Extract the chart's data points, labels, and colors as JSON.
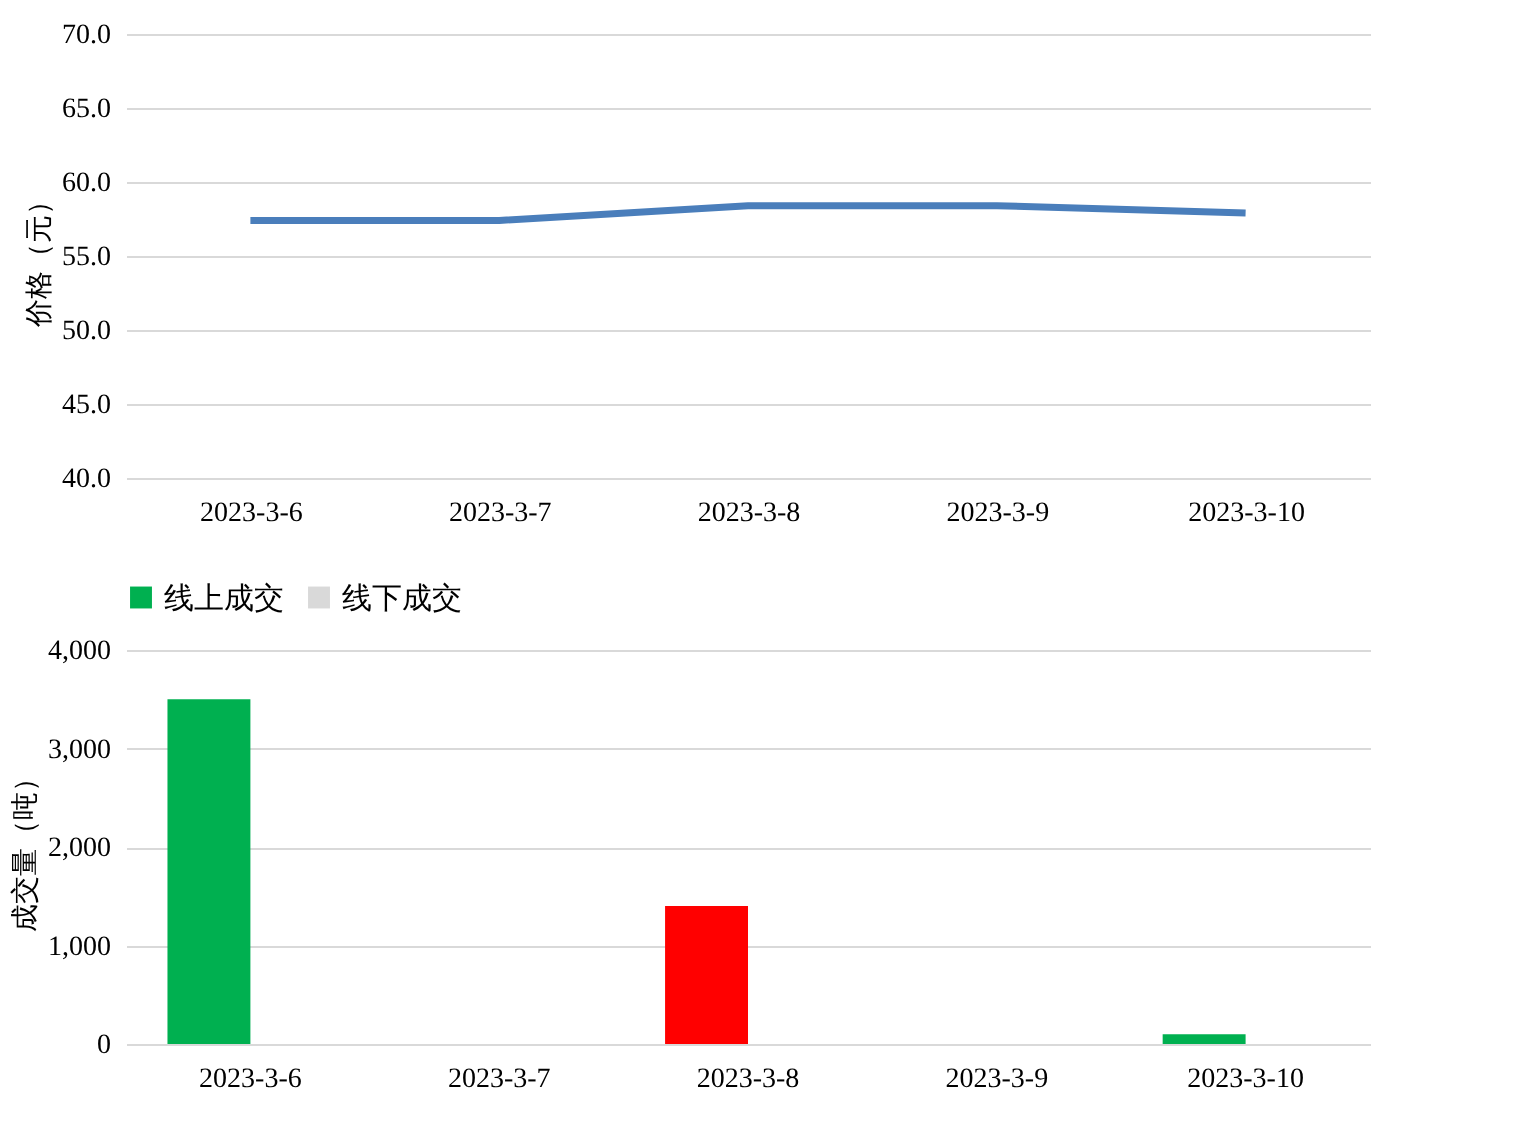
{
  "chart_data": [
    {
      "type": "line",
      "ylabel": "价格（元）",
      "categories": [
        "2023-3-6",
        "2023-3-7",
        "2023-3-8",
        "2023-3-9",
        "2023-3-10"
      ],
      "series": [
        {
          "color": "#4a7ebb",
          "values": [
            57.4,
            57.4,
            58.4,
            58.4,
            57.9
          ]
        }
      ],
      "ylim": [
        40,
        70
      ],
      "yticks": [
        {
          "value": 40,
          "label": "40.0"
        },
        {
          "value": 45,
          "label": "45.0"
        },
        {
          "value": 50,
          "label": "50.0"
        },
        {
          "value": 55,
          "label": "55.0"
        },
        {
          "value": 60,
          "label": "60.0"
        },
        {
          "value": 65,
          "label": "65.0"
        },
        {
          "value": 70,
          "label": "70.0"
        }
      ],
      "grid": "y",
      "legend": false,
      "marker": "none",
      "line_style": "solid"
    },
    {
      "type": "bar",
      "ylabel": "成交量（吨）",
      "categories": [
        "2023-3-6",
        "2023-3-7",
        "2023-3-8",
        "2023-3-9",
        "2023-3-10"
      ],
      "series": [
        {
          "name": "线上成交",
          "color": "#00b050",
          "colors": [
            "#00b050",
            null,
            "#ff0000",
            null,
            "#00b050"
          ],
          "values": [
            3500,
            0,
            1400,
            0,
            100
          ]
        },
        {
          "name": "线下成交",
          "color": "#d9d9d9",
          "values": [
            null,
            null,
            null,
            null,
            null
          ]
        }
      ],
      "ylim": [
        0,
        4000
      ],
      "yticks": [
        0,
        {
          "value": 1000,
          "label": "1,000"
        },
        {
          "value": 2000,
          "label": "2,000"
        },
        {
          "value": 3000,
          "label": "3,000"
        },
        {
          "value": 4000,
          "label": "4,000"
        }
      ],
      "grid": "y",
      "legend": "top"
    }
  ]
}
